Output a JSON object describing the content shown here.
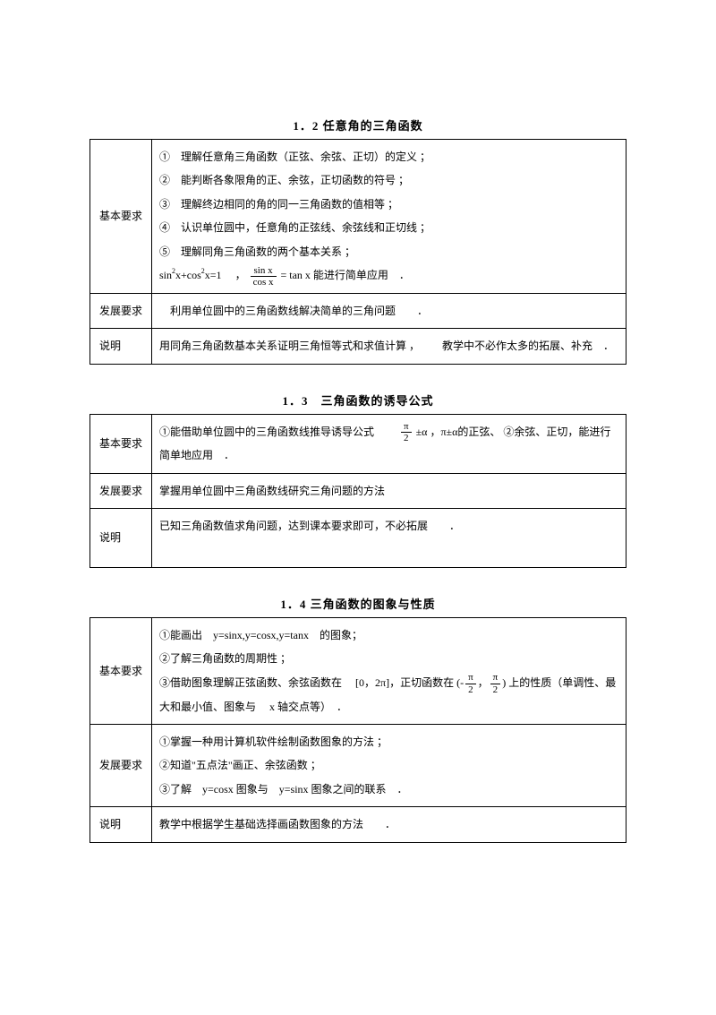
{
  "section1": {
    "title": "1．2 任意角的三角函数",
    "basic_label": "基本要求",
    "basic_items": {
      "i1": "①　理解任意角三角函数（正弦、余弦、正切）的定义 ；",
      "i2": "②　能判断各象限角的正、余弦，正切函数的符号 ；",
      "i3": "③　理解终边相同的角的同一三角函数的值相等 ；",
      "i4": "④　认识单位圆中，任意角的正弦线、余弦线和正切线 ；",
      "i5": "⑤　理解同角三角函数的两个基本关系 ；",
      "formula_a": "sin",
      "formula_b": "x+cos",
      "formula_c": "x=1",
      "formula_sep": "，",
      "frac_num": "sin x",
      "frac_den": "cos x",
      "formula_d": " = tan x 能进行简单应用　．"
    },
    "dev_label": "发展要求",
    "dev_text": "　利用单位圆中的三角函数线解决简单的三角问题　　．",
    "note_label": "说明",
    "note_text_a": "用同角三角函数基本关系证明三角恒等式和求值计算 ，",
    "note_text_b": "教学中不必作太多的拓展、补充　．"
  },
  "section2": {
    "title": "1．3　三角函数的诱导公式",
    "basic_label": "基本要求",
    "basic_text_a": "①能借助单位圆中的三角函数线推导诱导公式",
    "frac_num": "π",
    "frac_den": "2",
    "basic_text_b": "±α ，π±α的正弦、 ②余弦、正切，能进行简单地应用　．",
    "dev_label": "发展要求",
    "dev_text": "掌握用单位圆中三角函数线研究三角问题的方法",
    "note_label": "说明",
    "note_text": "已知三角函数值求角问题，达到课本要求即可，不必拓展　　．"
  },
  "section3": {
    "title": "1．4 三角函数的图象与性质",
    "basic_label": "基本要求",
    "basic_i1": "①能画出　y=sinx,y=cosx,y=tanx　的图象；",
    "basic_i2": "②了解三角函数的周期性 ；",
    "basic_i3a": "③借助图象理解正弦函数、余弦函数在",
    "basic_i3b": "[0，2π]，正切函数在 (-",
    "frac_num": "π",
    "frac_den": "2",
    "basic_i3c": "，",
    "basic_i3d": ") 上的性质（单调性、最大和最小值、图象与",
    "basic_i3e": "x 轴交点等）　．",
    "dev_label": "发展要求",
    "dev_i1": "①掌握一种用计算机软件绘制函数图象的方法 ；",
    "dev_i2": "②知道\"五点法\"画正、余弦函数 ；",
    "dev_i3": "③了解　y=cosx 图象与　y=sinx 图象之间的联系　．",
    "note_label": "说明",
    "note_text": "教学中根据学生基础选择画函数图象的方法　　．"
  }
}
